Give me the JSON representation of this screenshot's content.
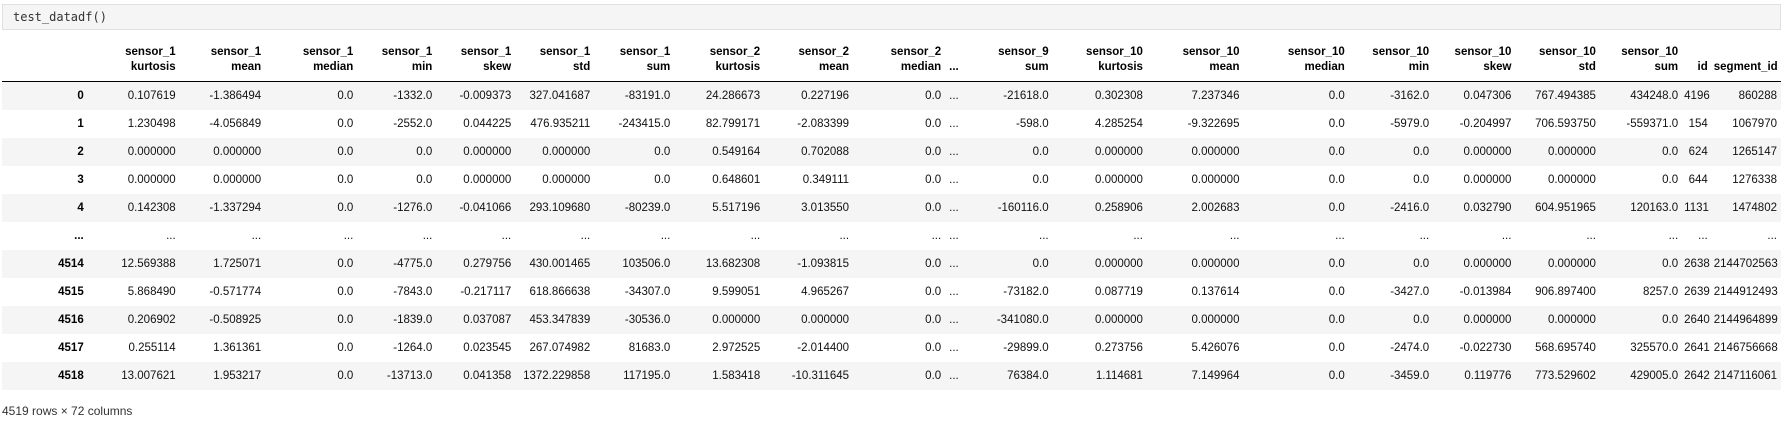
{
  "input": {
    "code": "test_datadf()"
  },
  "columns": [
    {
      "line1": "sensor_1",
      "line2": "kurtosis"
    },
    {
      "line1": "sensor_1",
      "line2": "mean"
    },
    {
      "line1": "sensor_1",
      "line2": "median"
    },
    {
      "line1": "sensor_1",
      "line2": "min"
    },
    {
      "line1": "sensor_1",
      "line2": "skew"
    },
    {
      "line1": "sensor_1",
      "line2": "std"
    },
    {
      "line1": "sensor_1",
      "line2": "sum"
    },
    {
      "line1": "sensor_2",
      "line2": "kurtosis"
    },
    {
      "line1": "sensor_2",
      "line2": "mean"
    },
    {
      "line1": "sensor_2",
      "line2": "median"
    },
    {
      "line1": "",
      "line2": "...",
      "ellipsis": true
    },
    {
      "line1": "sensor_9",
      "line2": "sum"
    },
    {
      "line1": "sensor_10",
      "line2": "kurtosis"
    },
    {
      "line1": "sensor_10",
      "line2": "mean"
    },
    {
      "line1": "sensor_10",
      "line2": "median"
    },
    {
      "line1": "sensor_10",
      "line2": "min"
    },
    {
      "line1": "sensor_10",
      "line2": "skew"
    },
    {
      "line1": "sensor_10",
      "line2": "std"
    },
    {
      "line1": "sensor_10",
      "line2": "sum"
    },
    {
      "line1": "",
      "line2": "id"
    },
    {
      "line1": "",
      "line2": "segment_id"
    }
  ],
  "rows": [
    {
      "index": "0",
      "cells": [
        "0.107619",
        "-1.386494",
        "0.0",
        "-1332.0",
        "-0.009373",
        "327.041687",
        "-83191.0",
        "24.286673",
        "0.227196",
        "0.0",
        "...",
        "-21618.0",
        "0.302308",
        "7.237346",
        "0.0",
        "-3162.0",
        "0.047306",
        "767.494385",
        "434248.0",
        "4196",
        "860288"
      ]
    },
    {
      "index": "1",
      "cells": [
        "1.230498",
        "-4.056849",
        "0.0",
        "-2552.0",
        "0.044225",
        "476.935211",
        "-243415.0",
        "82.799171",
        "-2.083399",
        "0.0",
        "...",
        "-598.0",
        "4.285254",
        "-9.322695",
        "0.0",
        "-5979.0",
        "-0.204997",
        "706.593750",
        "-559371.0",
        "154",
        "1067970"
      ]
    },
    {
      "index": "2",
      "cells": [
        "0.000000",
        "0.000000",
        "0.0",
        "0.0",
        "0.000000",
        "0.000000",
        "0.0",
        "0.549164",
        "0.702088",
        "0.0",
        "...",
        "0.0",
        "0.000000",
        "0.000000",
        "0.0",
        "0.0",
        "0.000000",
        "0.000000",
        "0.0",
        "624",
        "1265147"
      ]
    },
    {
      "index": "3",
      "cells": [
        "0.000000",
        "0.000000",
        "0.0",
        "0.0",
        "0.000000",
        "0.000000",
        "0.0",
        "0.648601",
        "0.349111",
        "0.0",
        "...",
        "0.0",
        "0.000000",
        "0.000000",
        "0.0",
        "0.0",
        "0.000000",
        "0.000000",
        "0.0",
        "644",
        "1276338"
      ]
    },
    {
      "index": "4",
      "cells": [
        "0.142308",
        "-1.337294",
        "0.0",
        "-1276.0",
        "-0.041066",
        "293.109680",
        "-80239.0",
        "5.517196",
        "3.013550",
        "0.0",
        "...",
        "-160116.0",
        "0.258906",
        "2.002683",
        "0.0",
        "-2416.0",
        "0.032790",
        "604.951965",
        "120163.0",
        "1131",
        "1474802"
      ]
    },
    {
      "index": "...",
      "cells": [
        "...",
        "...",
        "...",
        "...",
        "...",
        "...",
        "...",
        "...",
        "...",
        "...",
        "...",
        "...",
        "...",
        "...",
        "...",
        "...",
        "...",
        "...",
        "...",
        "...",
        "..."
      ]
    },
    {
      "index": "4514",
      "cells": [
        "12.569388",
        "1.725071",
        "0.0",
        "-4775.0",
        "0.279756",
        "430.001465",
        "103506.0",
        "13.682308",
        "-1.093815",
        "0.0",
        "...",
        "0.0",
        "0.000000",
        "0.000000",
        "0.0",
        "0.0",
        "0.000000",
        "0.000000",
        "0.0",
        "2638",
        "2144702563"
      ]
    },
    {
      "index": "4515",
      "cells": [
        "5.868490",
        "-0.571774",
        "0.0",
        "-7843.0",
        "-0.217117",
        "618.866638",
        "-34307.0",
        "9.599051",
        "4.965267",
        "0.0",
        "...",
        "-73182.0",
        "0.087719",
        "0.137614",
        "0.0",
        "-3427.0",
        "-0.013984",
        "906.897400",
        "8257.0",
        "2639",
        "2144912493"
      ]
    },
    {
      "index": "4516",
      "cells": [
        "0.206902",
        "-0.508925",
        "0.0",
        "-1839.0",
        "0.037087",
        "453.347839",
        "-30536.0",
        "0.000000",
        "0.000000",
        "0.0",
        "...",
        "-341080.0",
        "0.000000",
        "0.000000",
        "0.0",
        "0.0",
        "0.000000",
        "0.000000",
        "0.0",
        "2640",
        "2144964899"
      ]
    },
    {
      "index": "4517",
      "cells": [
        "0.255114",
        "1.361361",
        "0.0",
        "-1264.0",
        "0.023545",
        "267.074982",
        "81683.0",
        "2.972525",
        "-2.014400",
        "0.0",
        "...",
        "-29899.0",
        "0.273756",
        "5.426076",
        "0.0",
        "-2474.0",
        "-0.022730",
        "568.695740",
        "325570.0",
        "2641",
        "2146756668"
      ]
    },
    {
      "index": "4518",
      "cells": [
        "13.007621",
        "1.953217",
        "0.0",
        "-13713.0",
        "0.041358",
        "1372.229858",
        "117195.0",
        "1.583418",
        "-10.311645",
        "0.0",
        "...",
        "76384.0",
        "1.114681",
        "7.149964",
        "0.0",
        "-3459.0",
        "0.119776",
        "773.529602",
        "429005.0",
        "2642",
        "2147116061"
      ]
    }
  ],
  "footer": {
    "shape_text": "4519 rows × 72 columns"
  }
}
